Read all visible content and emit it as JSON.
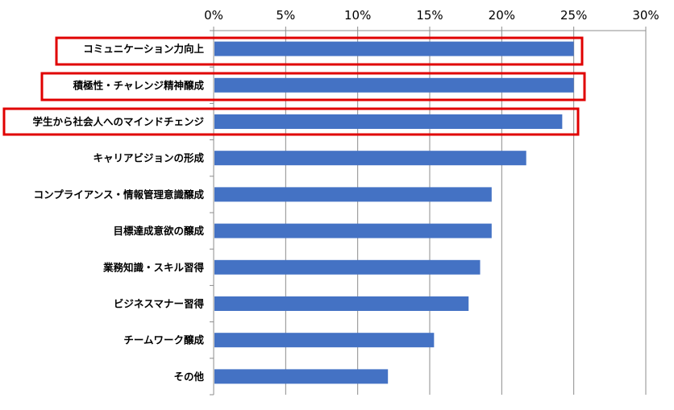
{
  "chart_data": {
    "type": "bar",
    "orientation": "horizontal",
    "title": "",
    "xlabel": "",
    "ylabel": "",
    "xlim": [
      0,
      30
    ],
    "x_ticks": [
      "0%",
      "5%",
      "10%",
      "15%",
      "20%",
      "25%",
      "30%"
    ],
    "x_tick_values": [
      0,
      5,
      10,
      15,
      20,
      25,
      30
    ],
    "grid": true,
    "categories": [
      "コミュニケーション力向上",
      "積極性・チャレンジ精神醸成",
      "学生から社会人へのマインドチェンジ",
      "キャリアビジョンの形成",
      "コンプライアンス・情報管理意識醸成",
      "目標達成意欲の醸成",
      "業務知識・スキル習得",
      "ビジネスマナー習得",
      "チームワーク醸成",
      "その他"
    ],
    "values": [
      25.0,
      25.0,
      24.2,
      21.7,
      19.3,
      19.3,
      18.5,
      17.7,
      15.3,
      12.1
    ],
    "highlighted": [
      0,
      1,
      2
    ],
    "bar_color": "#4472C4",
    "highlight_color": "#E00000"
  }
}
